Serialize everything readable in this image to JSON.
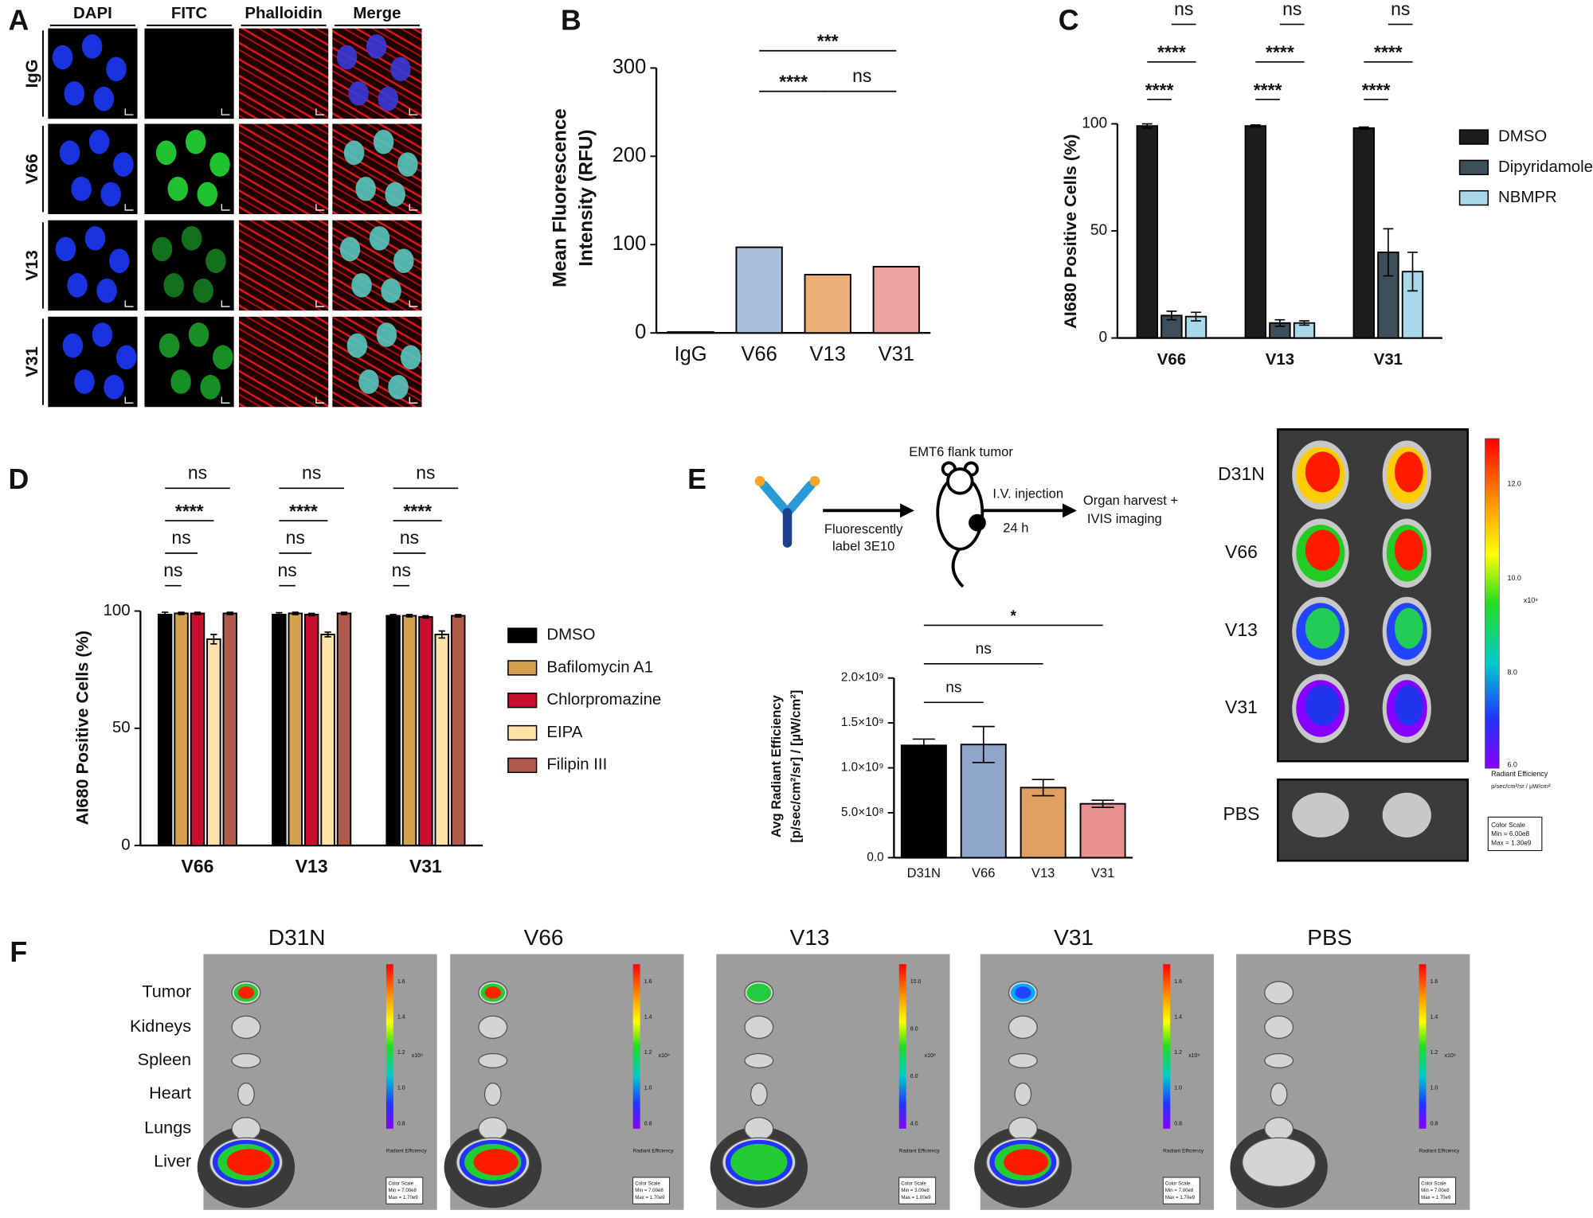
{
  "panel_labels": [
    "A",
    "B",
    "C",
    "D",
    "E",
    "F"
  ],
  "panel_a": {
    "columns": [
      "DAPI",
      "FITC",
      "Phalloidin",
      "Merge"
    ],
    "rows": [
      "IgG",
      "V66",
      "V13",
      "V31"
    ]
  },
  "chart_data": [
    {
      "type": "bar",
      "ylabel": [
        "Mean Fluorescence",
        "Intensity (RFU)"
      ],
      "categories": [
        "IgG",
        "V66",
        "V13",
        "V31"
      ],
      "values": [
        1,
        97,
        66,
        75
      ],
      "colors": [
        "#ffffff",
        "#a9bfdc",
        "#edb07a",
        "#eea3a3"
      ],
      "ylim": [
        0,
        300
      ],
      "yticks": [
        0,
        100,
        200,
        300
      ],
      "annotations": [
        {
          "text": "****",
          "between": [
            "V66",
            "V13"
          ]
        },
        {
          "text": "ns",
          "between": [
            "V13",
            "V31"
          ]
        },
        {
          "text": "***",
          "between": [
            "V66",
            "V31"
          ]
        }
      ]
    },
    {
      "type": "grouped-bar",
      "ylabel": "AI680 Positive Cells (%)",
      "categories": [
        "V66",
        "V13",
        "V31"
      ],
      "series": [
        {
          "name": "DMSO",
          "color": "#1c1c1c",
          "values": [
            99,
            99,
            98
          ],
          "errors": [
            1,
            0.5,
            0.5
          ]
        },
        {
          "name": "Dipyridamole",
          "color": "#3d4f5a",
          "values": [
            10.5,
            7,
            40
          ],
          "errors": [
            2,
            1.5,
            11
          ]
        },
        {
          "name": "NBMPR",
          "color": "#a8d8ea",
          "values": [
            10,
            7,
            31
          ],
          "errors": [
            2,
            1,
            9
          ]
        }
      ],
      "ylim": [
        0,
        100
      ],
      "yticks": [
        0,
        50,
        100
      ],
      "annotations": [
        {
          "category": "V66",
          "text": "****",
          "between": [
            "DMSO",
            "Dipyridamole"
          ]
        },
        {
          "category": "V66",
          "text": "****",
          "between": [
            "DMSO",
            "NBMPR"
          ]
        },
        {
          "category": "V66",
          "text": "ns",
          "between": [
            "Dipyridamole",
            "NBMPR"
          ]
        },
        {
          "category": "V13",
          "text": "****",
          "between": [
            "DMSO",
            "Dipyridamole"
          ]
        },
        {
          "category": "V13",
          "text": "****",
          "between": [
            "DMSO",
            "NBMPR"
          ]
        },
        {
          "category": "V13",
          "text": "ns",
          "between": [
            "Dipyridamole",
            "NBMPR"
          ]
        },
        {
          "category": "V31",
          "text": "****",
          "between": [
            "DMSO",
            "Dipyridamole"
          ]
        },
        {
          "category": "V31",
          "text": "****",
          "between": [
            "DMSO",
            "NBMPR"
          ]
        },
        {
          "category": "V31",
          "text": "ns",
          "between": [
            "Dipyridamole",
            "NBMPR"
          ]
        }
      ]
    },
    {
      "type": "grouped-bar",
      "ylabel": "AI680 Positive Cells (%)",
      "categories": [
        "V66",
        "V13",
        "V31"
      ],
      "series": [
        {
          "name": "DMSO",
          "color": "#000000",
          "values": [
            98.5,
            98.5,
            98
          ],
          "errors": [
            1,
            0.8,
            0.5
          ]
        },
        {
          "name": "Bafilomycin A1",
          "color": "#d4a050",
          "values": [
            99,
            99,
            98
          ],
          "errors": [
            0.5,
            0.5,
            0.5
          ]
        },
        {
          "name": "Chlorpromazine",
          "color": "#c8102e",
          "values": [
            99,
            98.5,
            97.5
          ],
          "errors": [
            0.5,
            0.5,
            0.5
          ]
        },
        {
          "name": "EIPA",
          "color": "#fde3a7",
          "values": [
            88,
            90,
            90
          ],
          "errors": [
            2,
            1,
            1.5
          ]
        },
        {
          "name": "Filipin III",
          "color": "#b05a4a",
          "values": [
            99,
            99,
            98
          ],
          "errors": [
            0.5,
            0.5,
            0.5
          ]
        }
      ],
      "ylim": [
        0,
        100
      ],
      "yticks": [
        0,
        50,
        100
      ],
      "annotations": [
        {
          "category": "V66",
          "text": "ns",
          "between": [
            "DMSO",
            "Bafilomycin A1"
          ]
        },
        {
          "category": "V66",
          "text": "ns",
          "between": [
            "DMSO",
            "Chlorpromazine"
          ]
        },
        {
          "category": "V66",
          "text": "****",
          "between": [
            "DMSO",
            "EIPA"
          ]
        },
        {
          "category": "V66",
          "text": "ns",
          "between": [
            "DMSO",
            "Filipin III"
          ]
        },
        {
          "category": "V13",
          "text": "ns",
          "between": [
            "DMSO",
            "Bafilomycin A1"
          ]
        },
        {
          "category": "V13",
          "text": "ns",
          "between": [
            "DMSO",
            "Chlorpromazine"
          ]
        },
        {
          "category": "V13",
          "text": "****",
          "between": [
            "DMSO",
            "EIPA"
          ]
        },
        {
          "category": "V13",
          "text": "ns",
          "between": [
            "DMSO",
            "Filipin III"
          ]
        },
        {
          "category": "V31",
          "text": "ns",
          "between": [
            "DMSO",
            "Bafilomycin A1"
          ]
        },
        {
          "category": "V31",
          "text": "ns",
          "between": [
            "DMSO",
            "Chlorpromazine"
          ]
        },
        {
          "category": "V31",
          "text": "****",
          "between": [
            "DMSO",
            "EIPA"
          ]
        },
        {
          "category": "V31",
          "text": "ns",
          "between": [
            "DMSO",
            "Filipin III"
          ]
        }
      ]
    },
    {
      "type": "bar",
      "ylabel": [
        "Avg Radiant Efficiency",
        "[p/sec/cm²/sr] / [µW/cm²]"
      ],
      "categories": [
        "D31N",
        "V66",
        "V13",
        "V31"
      ],
      "values": [
        1250000000,
        1260000000,
        780000000,
        600000000
      ],
      "errors": [
        70000000,
        200000000,
        90000000,
        40000000
      ],
      "colors": [
        "#000000",
        "#8fa6c8",
        "#e0a060",
        "#e89090"
      ],
      "ylim": [
        0,
        2000000000
      ],
      "yticks": [
        {
          "value": 0,
          "label": "0.0"
        },
        {
          "value": 500000000,
          "label": "5.0×10⁸"
        },
        {
          "value": 1000000000,
          "label": "1.0×10⁹"
        },
        {
          "value": 1500000000,
          "label": "1.5×10⁹"
        },
        {
          "value": 2000000000,
          "label": "2.0×10⁹"
        }
      ],
      "annotations": [
        {
          "text": "ns",
          "between": [
            "D31N",
            "V66"
          ]
        },
        {
          "text": "ns",
          "between": [
            "D31N",
            "V13"
          ]
        },
        {
          "text": "*",
          "between": [
            "D31N",
            "V31"
          ]
        }
      ]
    }
  ],
  "panel_e": {
    "tumor": "EMT6 flank tumor",
    "label": [
      "Fluorescently",
      "label 3E10"
    ],
    "injection": "I.V. injection",
    "time": "24 h",
    "harvest": [
      "Organ harvest +",
      "IVIS imaging"
    ],
    "rows": [
      "D31N",
      "V66",
      "V13",
      "V31",
      "PBS"
    ],
    "colorbar": {
      "ticks": [
        "12.0",
        "10.0",
        "8.0",
        "6.0"
      ],
      "exponent": "x10⁸",
      "title": "Radiant Efficiency",
      "units": "p/sec/cm²/sr / µW/cm²",
      "scale": [
        "Color Scale",
        "Min = 6.00e8",
        "Max = 1.30e9"
      ]
    }
  },
  "panel_f": {
    "organs": [
      "Tumor",
      "Kidneys",
      "Spleen",
      "Heart",
      "Lungs",
      "Liver"
    ],
    "colorbar_title": "Radiant Efficiency",
    "columns": [
      {
        "title": "D31N",
        "ticks": [
          "1.6",
          "1.4",
          "1.2",
          "1.0",
          "0.8"
        ],
        "exponent": "x10⁹",
        "scale": [
          "Color Scale",
          "Min = 7.00e8",
          "Max = 1.70e9"
        ]
      },
      {
        "title": "V66",
        "ticks": [
          "1.6",
          "1.4",
          "1.2",
          "1.0",
          "0.8"
        ],
        "exponent": "x10⁹",
        "scale": [
          "Color Scale",
          "Min = 7.00e8",
          "Max = 1.70e9"
        ]
      },
      {
        "title": "V13",
        "ticks": [
          "10.0",
          "8.0",
          "6.0",
          "4.0"
        ],
        "exponent": "x10⁸",
        "scale": [
          "Color Scale",
          "Min = 3.00e8",
          "Max = 1.00e9"
        ]
      },
      {
        "title": "V31",
        "ticks": [
          "1.6",
          "1.4",
          "1.2",
          "1.0",
          "0.8"
        ],
        "exponent": "x10⁹",
        "scale": [
          "Color Scale",
          "Min = 7.00e8",
          "Max = 1.70e9"
        ]
      },
      {
        "title": "PBS",
        "ticks": [
          "1.6",
          "1.4",
          "1.2",
          "1.0",
          "0.8"
        ],
        "exponent": "x10⁹",
        "scale": [
          "Color Scale",
          "Min = 7.00e8",
          "Max = 1.70e9"
        ]
      }
    ]
  }
}
